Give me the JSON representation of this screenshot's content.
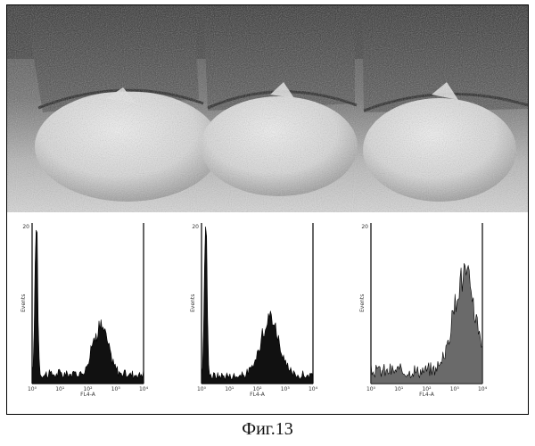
{
  "figure": {
    "caption": "Фиг.13"
  },
  "photo": {
    "icon": "seed-capsules-photo",
    "items": 3
  },
  "histograms": [
    {
      "panel": 1,
      "type": "area",
      "ylabel": "Events",
      "xlabel": "FL4-A",
      "ytick_top": "20",
      "xticks": [
        "10⁰",
        "10¹",
        "10²",
        "10³",
        "10⁴"
      ],
      "distribution": "bimodal",
      "peaks": [
        {
          "x_log": 0.15,
          "height": 1.0,
          "width": 0.07
        },
        {
          "x_log": 2.45,
          "height": 0.31,
          "width": 0.38
        }
      ],
      "baseline": 0.06
    },
    {
      "panel": 2,
      "type": "area",
      "ylabel": "Events",
      "xlabel": "FL4-A",
      "ytick_top": "20",
      "xticks": [
        "10⁰",
        "10¹",
        "10²",
        "10³",
        "10⁴"
      ],
      "distribution": "bimodal",
      "peaks": [
        {
          "x_log": 0.15,
          "height": 0.98,
          "width": 0.07
        },
        {
          "x_log": 2.45,
          "height": 0.38,
          "width": 0.45
        }
      ],
      "baseline": 0.05
    },
    {
      "panel": 3,
      "type": "area",
      "ylabel": "Events",
      "xlabel": "FL4-A",
      "ytick_top": "20",
      "xticks": [
        "10⁰",
        "10¹",
        "10²",
        "10³",
        "10⁴"
      ],
      "distribution": "unimodal-right",
      "peaks": [
        {
          "x_log": 3.35,
          "height": 0.62,
          "width": 0.55
        }
      ],
      "baseline": 0.08
    }
  ]
}
